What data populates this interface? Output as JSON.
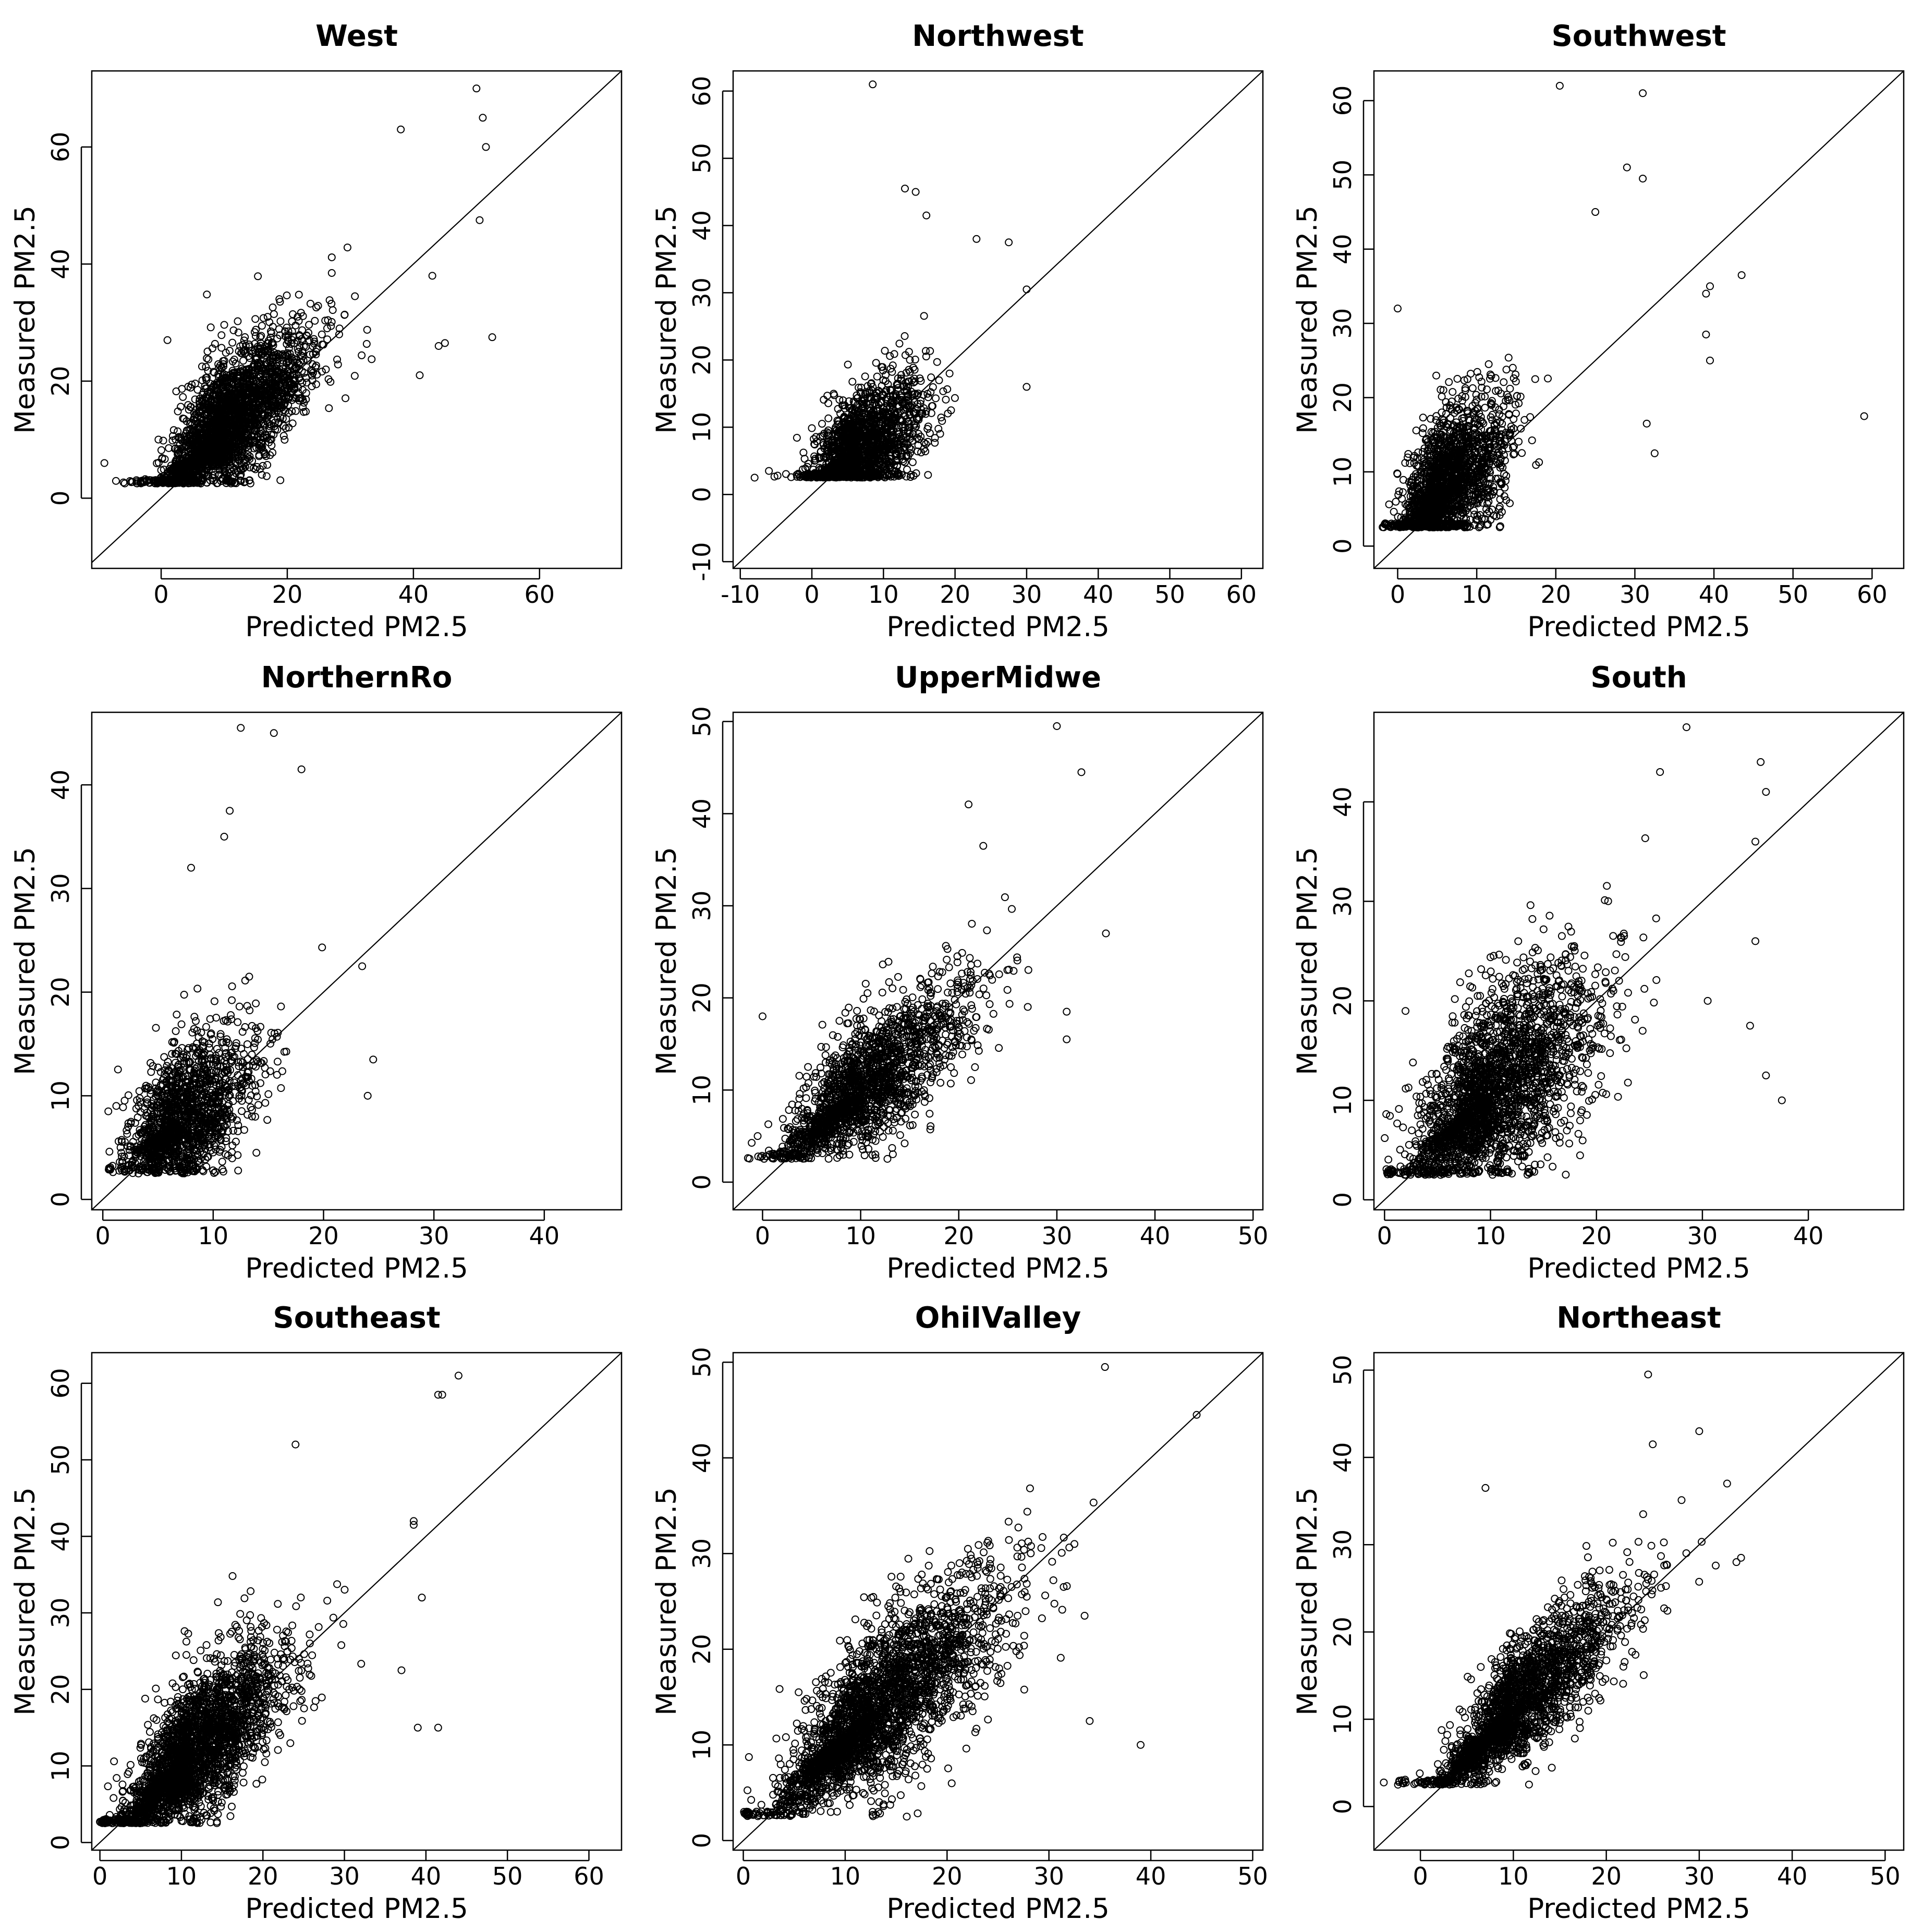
{
  "chart_data": [
    {
      "type": "scatter",
      "title": "West",
      "xlabel": "Predicted PM2.5",
      "ylabel": "Measured PM2.5",
      "xlim": [
        -11,
        73
      ],
      "ylim": [
        -12,
        73
      ],
      "xticks": [
        0,
        20,
        40,
        60
      ],
      "yticks": [
        0,
        20,
        40,
        60
      ],
      "reference_line": "y = x",
      "n_points": 2600,
      "points": [
        [
          50,
          70
        ],
        [
          51,
          65
        ],
        [
          51.5,
          60
        ],
        [
          52.5,
          27.5
        ],
        [
          44,
          26
        ],
        [
          45,
          26.5
        ],
        [
          41,
          21
        ],
        [
          50.5,
          47.5
        ],
        [
          38,
          63
        ],
        [
          43,
          38
        ],
        [
          -9,
          6
        ],
        [
          1,
          27
        ],
        [
          -3,
          3
        ]
      ],
      "cloud": {
        "cx": 10,
        "cy": 12,
        "sx": 6,
        "sy": 7,
        "corr": 0.75,
        "floor": 2.5
      }
    },
    {
      "type": "scatter",
      "title": "Northwest",
      "xlabel": "Predicted PM2.5",
      "ylabel": "Measured PM2.5",
      "xlim": [
        -11,
        63
      ],
      "ylim": [
        -11,
        63
      ],
      "xticks": [
        -10,
        0,
        10,
        20,
        30,
        40,
        50,
        60
      ],
      "yticks": [
        -10,
        0,
        10,
        20,
        30,
        40,
        50,
        60
      ],
      "reference_line": "y = x",
      "n_points": 1700,
      "points": [
        [
          8.5,
          61
        ],
        [
          13,
          45.5
        ],
        [
          14.5,
          45
        ],
        [
          16,
          41.5
        ],
        [
          30,
          30.5
        ],
        [
          30,
          16
        ],
        [
          27.5,
          37.5
        ],
        [
          23,
          38
        ],
        [
          -8,
          2.5
        ],
        [
          -6,
          3.5
        ]
      ],
      "cloud": {
        "cx": 6.5,
        "cy": 6.5,
        "sx": 4,
        "sy": 4.5,
        "corr": 0.55,
        "floor": 2.5
      }
    },
    {
      "type": "scatter",
      "title": "Southwest",
      "xlabel": "Predicted PM2.5",
      "ylabel": "Measured PM2.5",
      "xlim": [
        -3,
        64
      ],
      "ylim": [
        -3,
        64
      ],
      "xticks": [
        0,
        10,
        20,
        30,
        40,
        50,
        60
      ],
      "yticks": [
        0,
        10,
        20,
        30,
        40,
        50,
        60
      ],
      "reference_line": "y = x",
      "n_points": 1800,
      "points": [
        [
          20.5,
          62
        ],
        [
          31,
          61
        ],
        [
          29,
          51
        ],
        [
          31,
          49.5
        ],
        [
          39.5,
          35
        ],
        [
          39,
          34
        ],
        [
          43.5,
          36.5
        ],
        [
          39,
          28.5
        ],
        [
          39.5,
          25
        ],
        [
          59,
          17.5
        ],
        [
          0,
          32
        ],
        [
          31.5,
          16.5
        ],
        [
          32.5,
          12.5
        ],
        [
          25,
          45
        ]
      ],
      "cloud": {
        "cx": 6,
        "cy": 8,
        "sx": 3.5,
        "sy": 5,
        "corr": 0.6,
        "floor": 2.5
      }
    },
    {
      "type": "scatter",
      "title": "NorthernRo",
      "xlabel": "Predicted PM2.5",
      "ylabel": "Measured PM2.5",
      "xlim": [
        -1,
        47
      ],
      "ylim": [
        -1,
        47
      ],
      "xticks": [
        0,
        10,
        20,
        30,
        40
      ],
      "yticks": [
        0,
        10,
        20,
        30,
        40
      ],
      "reference_line": "y = x",
      "n_points": 1500,
      "points": [
        [
          12.5,
          45.5
        ],
        [
          15.5,
          45
        ],
        [
          18,
          41.5
        ],
        [
          11.5,
          37.5
        ],
        [
          11,
          35
        ],
        [
          8,
          32
        ],
        [
          24,
          10
        ],
        [
          24.5,
          13.5
        ],
        [
          23.5,
          22.5
        ],
        [
          0.5,
          8.5
        ]
      ],
      "cloud": {
        "cx": 7,
        "cy": 7.5,
        "sx": 3,
        "sy": 3.5,
        "corr": 0.55,
        "floor": 2.5
      }
    },
    {
      "type": "scatter",
      "title": "UpperMidwe",
      "xlabel": "Predicted PM2.5",
      "ylabel": "Measured PM2.5",
      "xlim": [
        -3,
        51
      ],
      "ylim": [
        -3,
        51
      ],
      "xticks": [
        0,
        10,
        20,
        30,
        40,
        50
      ],
      "yticks": [
        0,
        10,
        20,
        30,
        40,
        50
      ],
      "reference_line": "y = x",
      "n_points": 1800,
      "points": [
        [
          30,
          49.5
        ],
        [
          32.5,
          44.5
        ],
        [
          35,
          27
        ],
        [
          31,
          18.5
        ],
        [
          31,
          15.5
        ],
        [
          0,
          18
        ],
        [
          -0.5,
          5
        ],
        [
          21,
          41
        ],
        [
          22.5,
          36.5
        ]
      ],
      "cloud": {
        "cx": 10,
        "cy": 10,
        "sx": 5,
        "sy": 5,
        "corr": 0.8,
        "floor": 2.5
      }
    },
    {
      "type": "scatter",
      "title": "South",
      "xlabel": "Predicted PM2.5",
      "ylabel": "Measured PM2.5",
      "xlim": [
        -1,
        49
      ],
      "ylim": [
        -1,
        49
      ],
      "xticks": [
        0,
        10,
        20,
        30,
        40
      ],
      "yticks": [
        0,
        10,
        20,
        30,
        40
      ],
      "reference_line": "y = x",
      "n_points": 2400,
      "points": [
        [
          28.5,
          47.5
        ],
        [
          35.5,
          44
        ],
        [
          36,
          41
        ],
        [
          26,
          43
        ],
        [
          35,
          36
        ],
        [
          37.5,
          10
        ],
        [
          36,
          12.5
        ],
        [
          34.5,
          17.5
        ],
        [
          35,
          26
        ],
        [
          30.5,
          20
        ],
        [
          2,
          2.5
        ]
      ],
      "cloud": {
        "cx": 10,
        "cy": 10.5,
        "sx": 4.5,
        "sy": 5.5,
        "corr": 0.65,
        "floor": 2.5
      }
    },
    {
      "type": "scatter",
      "title": "Southeast",
      "xlabel": "Predicted PM2.5",
      "ylabel": "Measured PM2.5",
      "xlim": [
        -1,
        64
      ],
      "ylim": [
        -1,
        64
      ],
      "xticks": [
        0,
        10,
        20,
        30,
        40,
        50,
        60
      ],
      "yticks": [
        0,
        10,
        20,
        30,
        40,
        50,
        60
      ],
      "reference_line": "y = x",
      "n_points": 2600,
      "points": [
        [
          44,
          61
        ],
        [
          42,
          58.5
        ],
        [
          41.5,
          58.5
        ],
        [
          24,
          52
        ],
        [
          38.5,
          42
        ],
        [
          38.5,
          41.5
        ],
        [
          41.5,
          15
        ],
        [
          39,
          15
        ],
        [
          39.5,
          32
        ],
        [
          37,
          22.5
        ]
      ],
      "cloud": {
        "cx": 11,
        "cy": 11,
        "sx": 5,
        "sy": 6,
        "corr": 0.75,
        "floor": 2.5
      }
    },
    {
      "type": "scatter",
      "title": "OhiIValley",
      "xlabel": "Predicted PM2.5",
      "ylabel": "Measured PM2.5",
      "xlim": [
        -1,
        51
      ],
      "ylim": [
        -1,
        51
      ],
      "xticks": [
        0,
        10,
        20,
        30,
        40,
        50
      ],
      "yticks": [
        0,
        10,
        20,
        30,
        40,
        50
      ],
      "reference_line": "y = x",
      "n_points": 2800,
      "points": [
        [
          35.5,
          49.5
        ],
        [
          44.5,
          44.5
        ],
        [
          39,
          10
        ],
        [
          34,
          12.5
        ],
        [
          33.5,
          23.5
        ],
        [
          32.5,
          31
        ]
      ],
      "cloud": {
        "cx": 12.5,
        "cy": 13,
        "sx": 5.5,
        "sy": 6,
        "corr": 0.8,
        "floor": 2.5
      }
    },
    {
      "type": "scatter",
      "title": "Northeast",
      "xlabel": "Predicted PM2.5",
      "ylabel": "Measured PM2.5",
      "xlim": [
        -5,
        52
      ],
      "ylim": [
        -5,
        52
      ],
      "xticks": [
        0,
        10,
        20,
        30,
        40,
        50
      ],
      "yticks": [
        0,
        10,
        20,
        30,
        40,
        50
      ],
      "reference_line": "y = x",
      "n_points": 2200,
      "points": [
        [
          24.5,
          49.5
        ],
        [
          25,
          41.5
        ],
        [
          30,
          43
        ],
        [
          34,
          28
        ],
        [
          34.5,
          28.5
        ],
        [
          33,
          37
        ],
        [
          -2,
          3
        ],
        [
          7,
          36.5
        ]
      ],
      "cloud": {
        "cx": 10,
        "cy": 11,
        "sx": 5,
        "sy": 5.5,
        "corr": 0.85,
        "floor": 2.5
      }
    }
  ]
}
